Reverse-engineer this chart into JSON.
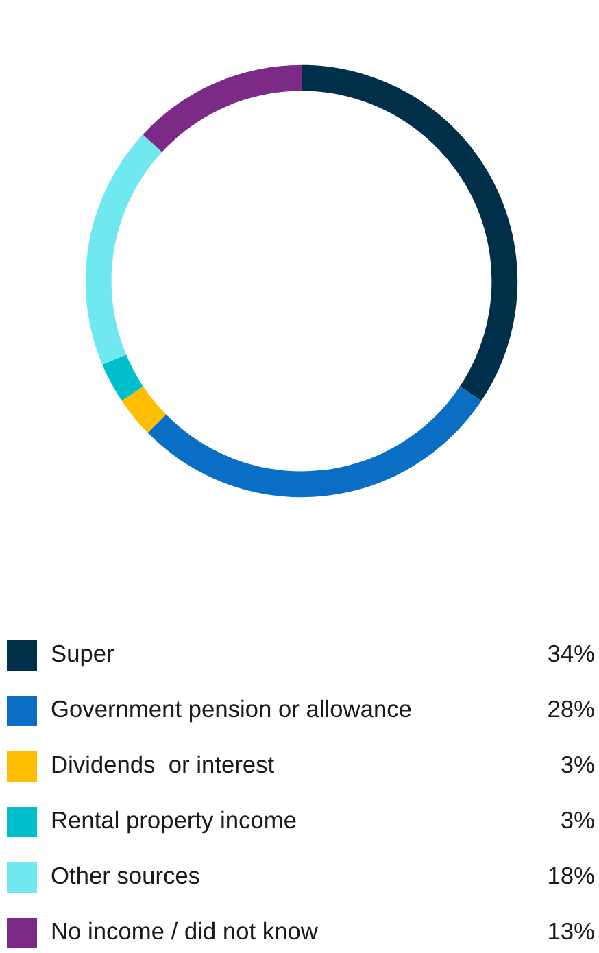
{
  "chart_data": {
    "type": "donut",
    "categories": [
      "Super",
      "Government pension or allowance",
      "Dividends  or interest",
      "Rental property income",
      "Other sources",
      "No income / did not know"
    ],
    "values": [
      34,
      28,
      3,
      3,
      18,
      13
    ],
    "value_labels": [
      "34%",
      "28%",
      "3%",
      "3%",
      "18%",
      "13%"
    ],
    "colors": [
      "#002f4a",
      "#0a6fc4",
      "#ffbf00",
      "#00bfcc",
      "#6fe8f0",
      "#7b2a85"
    ],
    "legend": "bottom"
  }
}
